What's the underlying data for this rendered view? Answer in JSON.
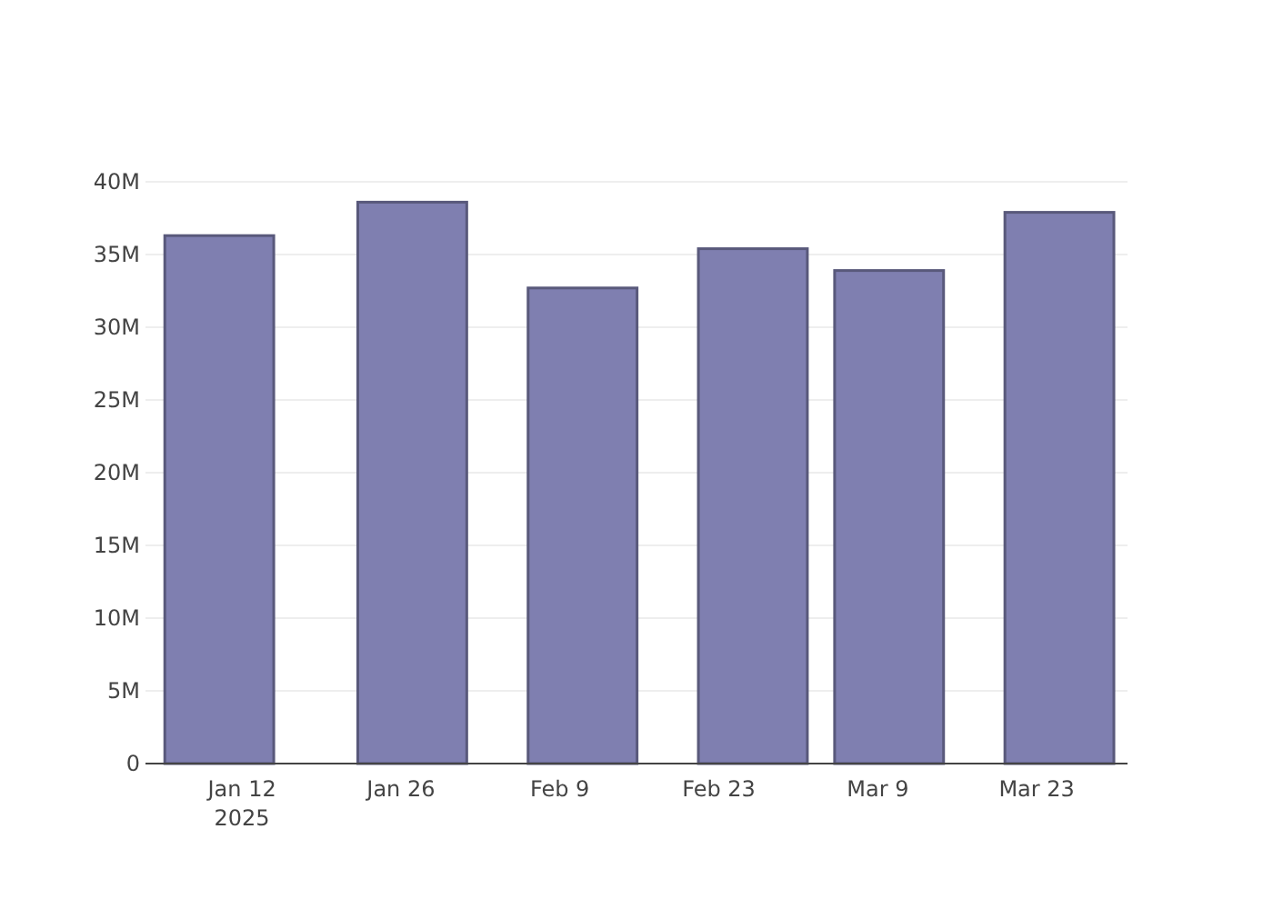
{
  "chart_data": {
    "type": "bar",
    "x": [
      "2025-01-10",
      "2025-01-27",
      "2025-02-11",
      "2025-02-26",
      "2025-03-10",
      "2025-03-25"
    ],
    "values": [
      36300000,
      38600000,
      32700000,
      35400000,
      33900000,
      37900000
    ],
    "color": "#7f7fb0",
    "xlim": [
      "2025-01-03T12:00",
      "2025-03-31"
    ],
    "xticks": [
      {
        "value": "2025-01-12",
        "label": "Jan 12\n2025"
      },
      {
        "value": "2025-01-26",
        "label": "Jan 26"
      },
      {
        "value": "2025-02-09",
        "label": "Feb 9"
      },
      {
        "value": "2025-02-23",
        "label": "Feb 23"
      },
      {
        "value": "2025-03-09",
        "label": "Mar 9"
      },
      {
        "value": "2025-03-23",
        "label": "Mar 23"
      }
    ],
    "ylim": [
      0,
      40000000
    ],
    "yticks": [
      {
        "value": 0,
        "label": "0"
      },
      {
        "value": 5000000,
        "label": "5M"
      },
      {
        "value": 10000000,
        "label": "10M"
      },
      {
        "value": 15000000,
        "label": "15M"
      },
      {
        "value": 20000000,
        "label": "20M"
      },
      {
        "value": 25000000,
        "label": "25M"
      },
      {
        "value": 30000000,
        "label": "30M"
      },
      {
        "value": 35000000,
        "label": "35M"
      },
      {
        "value": 40000000,
        "label": "40M"
      }
    ],
    "grid": "y"
  }
}
